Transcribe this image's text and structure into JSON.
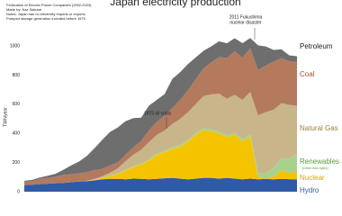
{
  "chart_data": {
    "type": "stacked_area",
    "title": "Japan electricity production",
    "notes": [
      "Federation of Electric Power Companies (1952-2023)",
      "Made by: Kaz Sakurai",
      "Notes: Japan has no electricity imports or exports",
      "Pumped storage generation included before 1975"
    ],
    "y_label": "TWh/year",
    "categories": [
      null,
      null,
      null,
      null,
      null,
      null,
      null,
      null,
      null,
      null,
      null,
      null,
      null,
      null,
      null,
      null,
      null,
      null,
      null,
      null,
      null,
      null,
      null,
      null,
      null,
      null,
      null,
      null,
      null,
      null,
      null,
      null,
      null,
      null,
      null,
      null
    ],
    "ylim": [
      0,
      1100
    ],
    "yticks": [
      0,
      200,
      400,
      600,
      800,
      1000
    ],
    "grid": false,
    "series": [
      {
        "name": "Hydro",
        "color": "#2f5aa5",
        "label_color": "#2f5aa5",
        "values": [
          45,
          48,
          52,
          55,
          58,
          60,
          65,
          70,
          72,
          78,
          85,
          88,
          88,
          85,
          90,
          88,
          85,
          88,
          92,
          95,
          90,
          85,
          90,
          95,
          95,
          90,
          95,
          90,
          85,
          90,
          85,
          87,
          85,
          88,
          86,
          85
        ]
      },
      {
        "name": "Nuclear",
        "color": "#f5c400",
        "label_color": "#d9a800",
        "values": [
          0,
          0,
          0,
          0,
          0,
          0,
          0,
          1,
          2,
          5,
          10,
          20,
          35,
          60,
          80,
          100,
          130,
          165,
          180,
          200,
          220,
          260,
          300,
          330,
          320,
          310,
          280,
          300,
          260,
          290,
          15,
          0,
          18,
          60,
          40,
          55
        ]
      },
      {
        "name": "Renewables",
        "subtitle": "(Other than hydro)",
        "color": "#a9d18e",
        "label_color": "#5a9a3a",
        "values": [
          0,
          0,
          0,
          0,
          0,
          0,
          0,
          0,
          0,
          0,
          1,
          2,
          3,
          4,
          5,
          5,
          6,
          7,
          8,
          10,
          10,
          11,
          12,
          12,
          13,
          13,
          14,
          14,
          15,
          15,
          25,
          40,
          60,
          80,
          100,
          120
        ]
      },
      {
        "name": "Natural Gas",
        "color": "#c8b68a",
        "label_color": "#9a7f3c",
        "values": [
          0,
          0,
          0,
          0,
          0,
          0,
          0,
          0,
          0,
          5,
          10,
          20,
          35,
          60,
          80,
          95,
          120,
          130,
          140,
          160,
          180,
          190,
          200,
          220,
          240,
          260,
          250,
          260,
          270,
          290,
          400,
          420,
          400,
          380,
          370,
          330
        ]
      },
      {
        "name": "Coal",
        "color": "#b47a5e",
        "label_color": "#a0522d",
        "values": [
          25,
          25,
          35,
          40,
          45,
          55,
          55,
          55,
          60,
          60,
          50,
          50,
          40,
          45,
          50,
          60,
          80,
          90,
          100,
          110,
          130,
          150,
          170,
          190,
          220,
          250,
          280,
          300,
          290,
          300,
          310,
          320,
          330,
          310,
          300,
          300
        ]
      },
      {
        "name": "Petroleum",
        "color": "#6e6e6e",
        "label_color": "#222222",
        "values": [
          5,
          8,
          10,
          15,
          20,
          35,
          60,
          80,
          110,
          150,
          200,
          230,
          240,
          230,
          200,
          160,
          170,
          150,
          150,
          200,
          190,
          180,
          150,
          120,
          110,
          110,
          100,
          90,
          100,
          70,
          170,
          130,
          80,
          60,
          40,
          40
        ]
      }
    ],
    "annotations": [
      {
        "lines": [
          "1973 oil crisis"
        ]
      },
      {
        "lines": [
          "2011 Fukushima",
          "nuclear disaster"
        ]
      }
    ]
  }
}
